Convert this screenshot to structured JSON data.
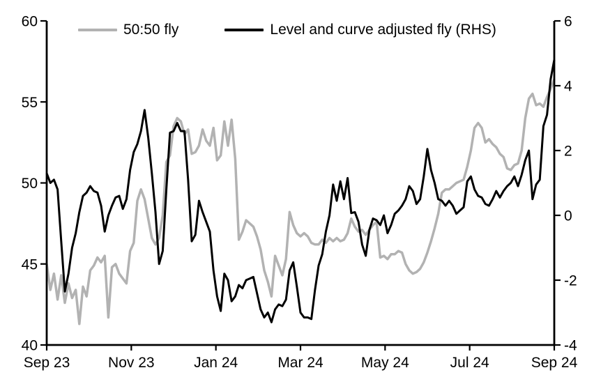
{
  "chart_data": {
    "type": "line",
    "title": "",
    "grid": false,
    "legend_position": "top",
    "legend": [
      {
        "label": "50:50 fly",
        "color": "#b2b2b2"
      },
      {
        "label": "Level and curve adjusted fly (RHS)",
        "color": "#000000"
      }
    ],
    "x_axis": {
      "tick_labels": [
        "Sep 23",
        "Nov 23",
        "Jan 24",
        "Mar 24",
        "May 24",
        "Jul 24",
        "Sep 24"
      ]
    },
    "y_axis_left": {
      "range": [
        40,
        60
      ],
      "ticks": [
        60,
        55,
        50,
        45,
        40
      ],
      "tick_labels": [
        "60",
        "55",
        "50",
        "45",
        "40"
      ]
    },
    "y_axis_right": {
      "range": [
        -4,
        6
      ],
      "ticks": [
        6,
        4,
        2,
        0,
        -2,
        -4
      ],
      "tick_labels": [
        "6",
        "4",
        "2",
        "0",
        "-2",
        "-4"
      ]
    },
    "series": [
      {
        "name": "50:50 fly",
        "axis": "left",
        "color": "#b2b2b2",
        "width": 3.5,
        "values": [
          45.0,
          43.4,
          44.4,
          42.8,
          44.3,
          42.6,
          43.8,
          42.9,
          43.4,
          41.3,
          43.6,
          43.0,
          44.6,
          44.9,
          45.4,
          45.1,
          45.5,
          41.7,
          44.8,
          45.0,
          44.4,
          44.1,
          43.8,
          45.8,
          46.3,
          48.9,
          49.6,
          49.0,
          47.8,
          46.6,
          46.2,
          46.6,
          48.0,
          51.3,
          51.7,
          53.5,
          54.0,
          53.8,
          53.0,
          53.3,
          51.8,
          51.9,
          52.3,
          53.3,
          52.6,
          52.3,
          53.4,
          51.4,
          51.7,
          53.8,
          52.3,
          53.9,
          51.5,
          46.5,
          47.0,
          47.7,
          47.5,
          47.3,
          46.7,
          45.9,
          44.6,
          43.9,
          43.0,
          45.5,
          44.9,
          44.3,
          45.3,
          48.2,
          47.4,
          46.9,
          46.7,
          46.9,
          46.7,
          46.3,
          46.2,
          46.2,
          46.5,
          46.3,
          46.6,
          46.4,
          46.6,
          46.4,
          46.5,
          46.9,
          47.8,
          47.3,
          47.0,
          47.1,
          46.8,
          47.1,
          47.4,
          47.6,
          45.4,
          45.5,
          45.3,
          45.6,
          45.6,
          45.8,
          45.7,
          45.0,
          44.6,
          44.4,
          44.5,
          44.7,
          45.1,
          45.7,
          46.4,
          47.2,
          48.1,
          49.4,
          49.6,
          49.6,
          49.8,
          50.0,
          50.1,
          50.2,
          51.0,
          52.0,
          53.4,
          53.7,
          53.4,
          52.5,
          52.7,
          52.4,
          52.2,
          51.8,
          51.6,
          50.9,
          50.8,
          51.1,
          51.2,
          52.0,
          54.0,
          55.2,
          55.5,
          54.8,
          54.9,
          54.7,
          55.3,
          55.8,
          56.4
        ]
      },
      {
        "name": "Level and curve adjusted fly (RHS)",
        "axis": "right",
        "color": "#000000",
        "width": 3,
        "values": [
          1.3,
          1.0,
          1.1,
          0.8,
          -0.8,
          -2.35,
          -1.8,
          -1.0,
          -0.55,
          0.1,
          0.6,
          0.7,
          0.9,
          0.75,
          0.7,
          0.3,
          -0.5,
          0.0,
          0.3,
          0.55,
          0.6,
          0.2,
          0.5,
          1.4,
          1.95,
          2.2,
          2.6,
          3.25,
          2.4,
          1.3,
          0.1,
          -1.5,
          -1.1,
          0.8,
          2.55,
          2.6,
          2.85,
          2.6,
          2.6,
          1.1,
          -0.8,
          -0.6,
          0.45,
          0.1,
          -0.2,
          -0.5,
          -1.7,
          -2.5,
          -2.95,
          -1.8,
          -2.0,
          -2.65,
          -2.5,
          -2.15,
          -2.25,
          -2.0,
          -1.95,
          -1.9,
          -2.4,
          -2.9,
          -3.15,
          -3.0,
          -3.3,
          -2.9,
          -2.75,
          -2.8,
          -2.6,
          -1.7,
          -1.45,
          -2.2,
          -3.0,
          -3.15,
          -3.15,
          -3.2,
          -2.3,
          -1.55,
          -1.2,
          -0.5,
          0.0,
          0.95,
          0.45,
          1.05,
          0.5,
          1.15,
          0.07,
          0.1,
          -0.2,
          -0.9,
          -1.25,
          -0.45,
          -0.1,
          -0.15,
          -0.3,
          0.0,
          -0.55,
          -0.3,
          0.05,
          0.15,
          0.3,
          0.5,
          0.9,
          0.75,
          0.35,
          0.5,
          1.2,
          2.05,
          1.4,
          1.0,
          0.5,
          0.45,
          0.3,
          0.45,
          0.3,
          0.05,
          0.15,
          0.25,
          1.05,
          1.2,
          0.8,
          0.6,
          0.55,
          0.35,
          0.3,
          0.5,
          0.75,
          0.55,
          0.75,
          0.9,
          1.0,
          1.2,
          0.9,
          1.25,
          1.7,
          2.0,
          0.5,
          0.95,
          1.1,
          2.75,
          3.1,
          4.2,
          4.8
        ]
      }
    ]
  }
}
